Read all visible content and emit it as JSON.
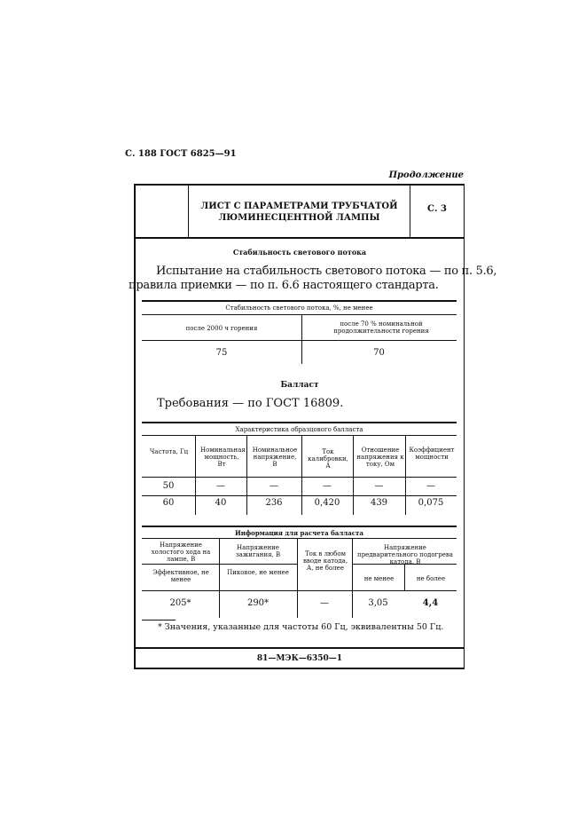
{
  "page_header": "С. 188 ГОСТ 6825—91",
  "continuation": "Продолжение",
  "sheet": {
    "title_line1": "ЛИСТ С ПАРАМЕТРАМИ ТРУБЧАТОЙ",
    "title_line2": "ЛЮМИНЕСЦЕНТНОЙ ЛАМПЫ",
    "page": "С. 3"
  },
  "section1": {
    "heading": "Стабильность светового потока",
    "text_line1": "Испытание на стабильность светового потока — по п. 5.6,",
    "text_line2": "правила приемки — по п. 6.6 настоящего стандарта."
  },
  "table1": {
    "title": "Стабильность светового потока, %, не менее",
    "headers": [
      "после 2000 ч горения",
      "после 70 % номинальной продолжительности горения"
    ],
    "values": [
      "75",
      "70"
    ]
  },
  "section2": {
    "heading": "Балласт",
    "text": "Требования — по ГОСТ 16809."
  },
  "table2": {
    "title": "Характеристика образцового балласта",
    "headers": [
      "Частота, Гц",
      "Номинальная мощность, Вт",
      "Номинальное напряжение, В",
      "Ток калибровки, А",
      "Отношение напряжения к току, Ом",
      "Коэффициент мощности"
    ],
    "rows": [
      [
        "50",
        "—",
        "—",
        "—",
        "—",
        "—"
      ],
      [
        "60",
        "40",
        "236",
        "0,420",
        "439",
        "0,075"
      ]
    ]
  },
  "table3": {
    "title": "Информация для расчета балласта",
    "headers": [
      "Напряжение холостого хода на лампе, В",
      "Напряжение зажигания, В",
      "Ток в любом вводе катода, А, не более",
      "Напряжение предварительного подогрева катода, В"
    ],
    "subheaders": [
      "Эффективное, не менее",
      "Пиковое, не менее",
      "не менее",
      "не более"
    ],
    "values": [
      "205*",
      "290*",
      "—",
      "3,05",
      "4,4"
    ]
  },
  "footnote": "* Значения, указанные для частоты 60 Гц, эквивалентны 50 Гц.",
  "footer_code": "81—МЭК—6350—1"
}
